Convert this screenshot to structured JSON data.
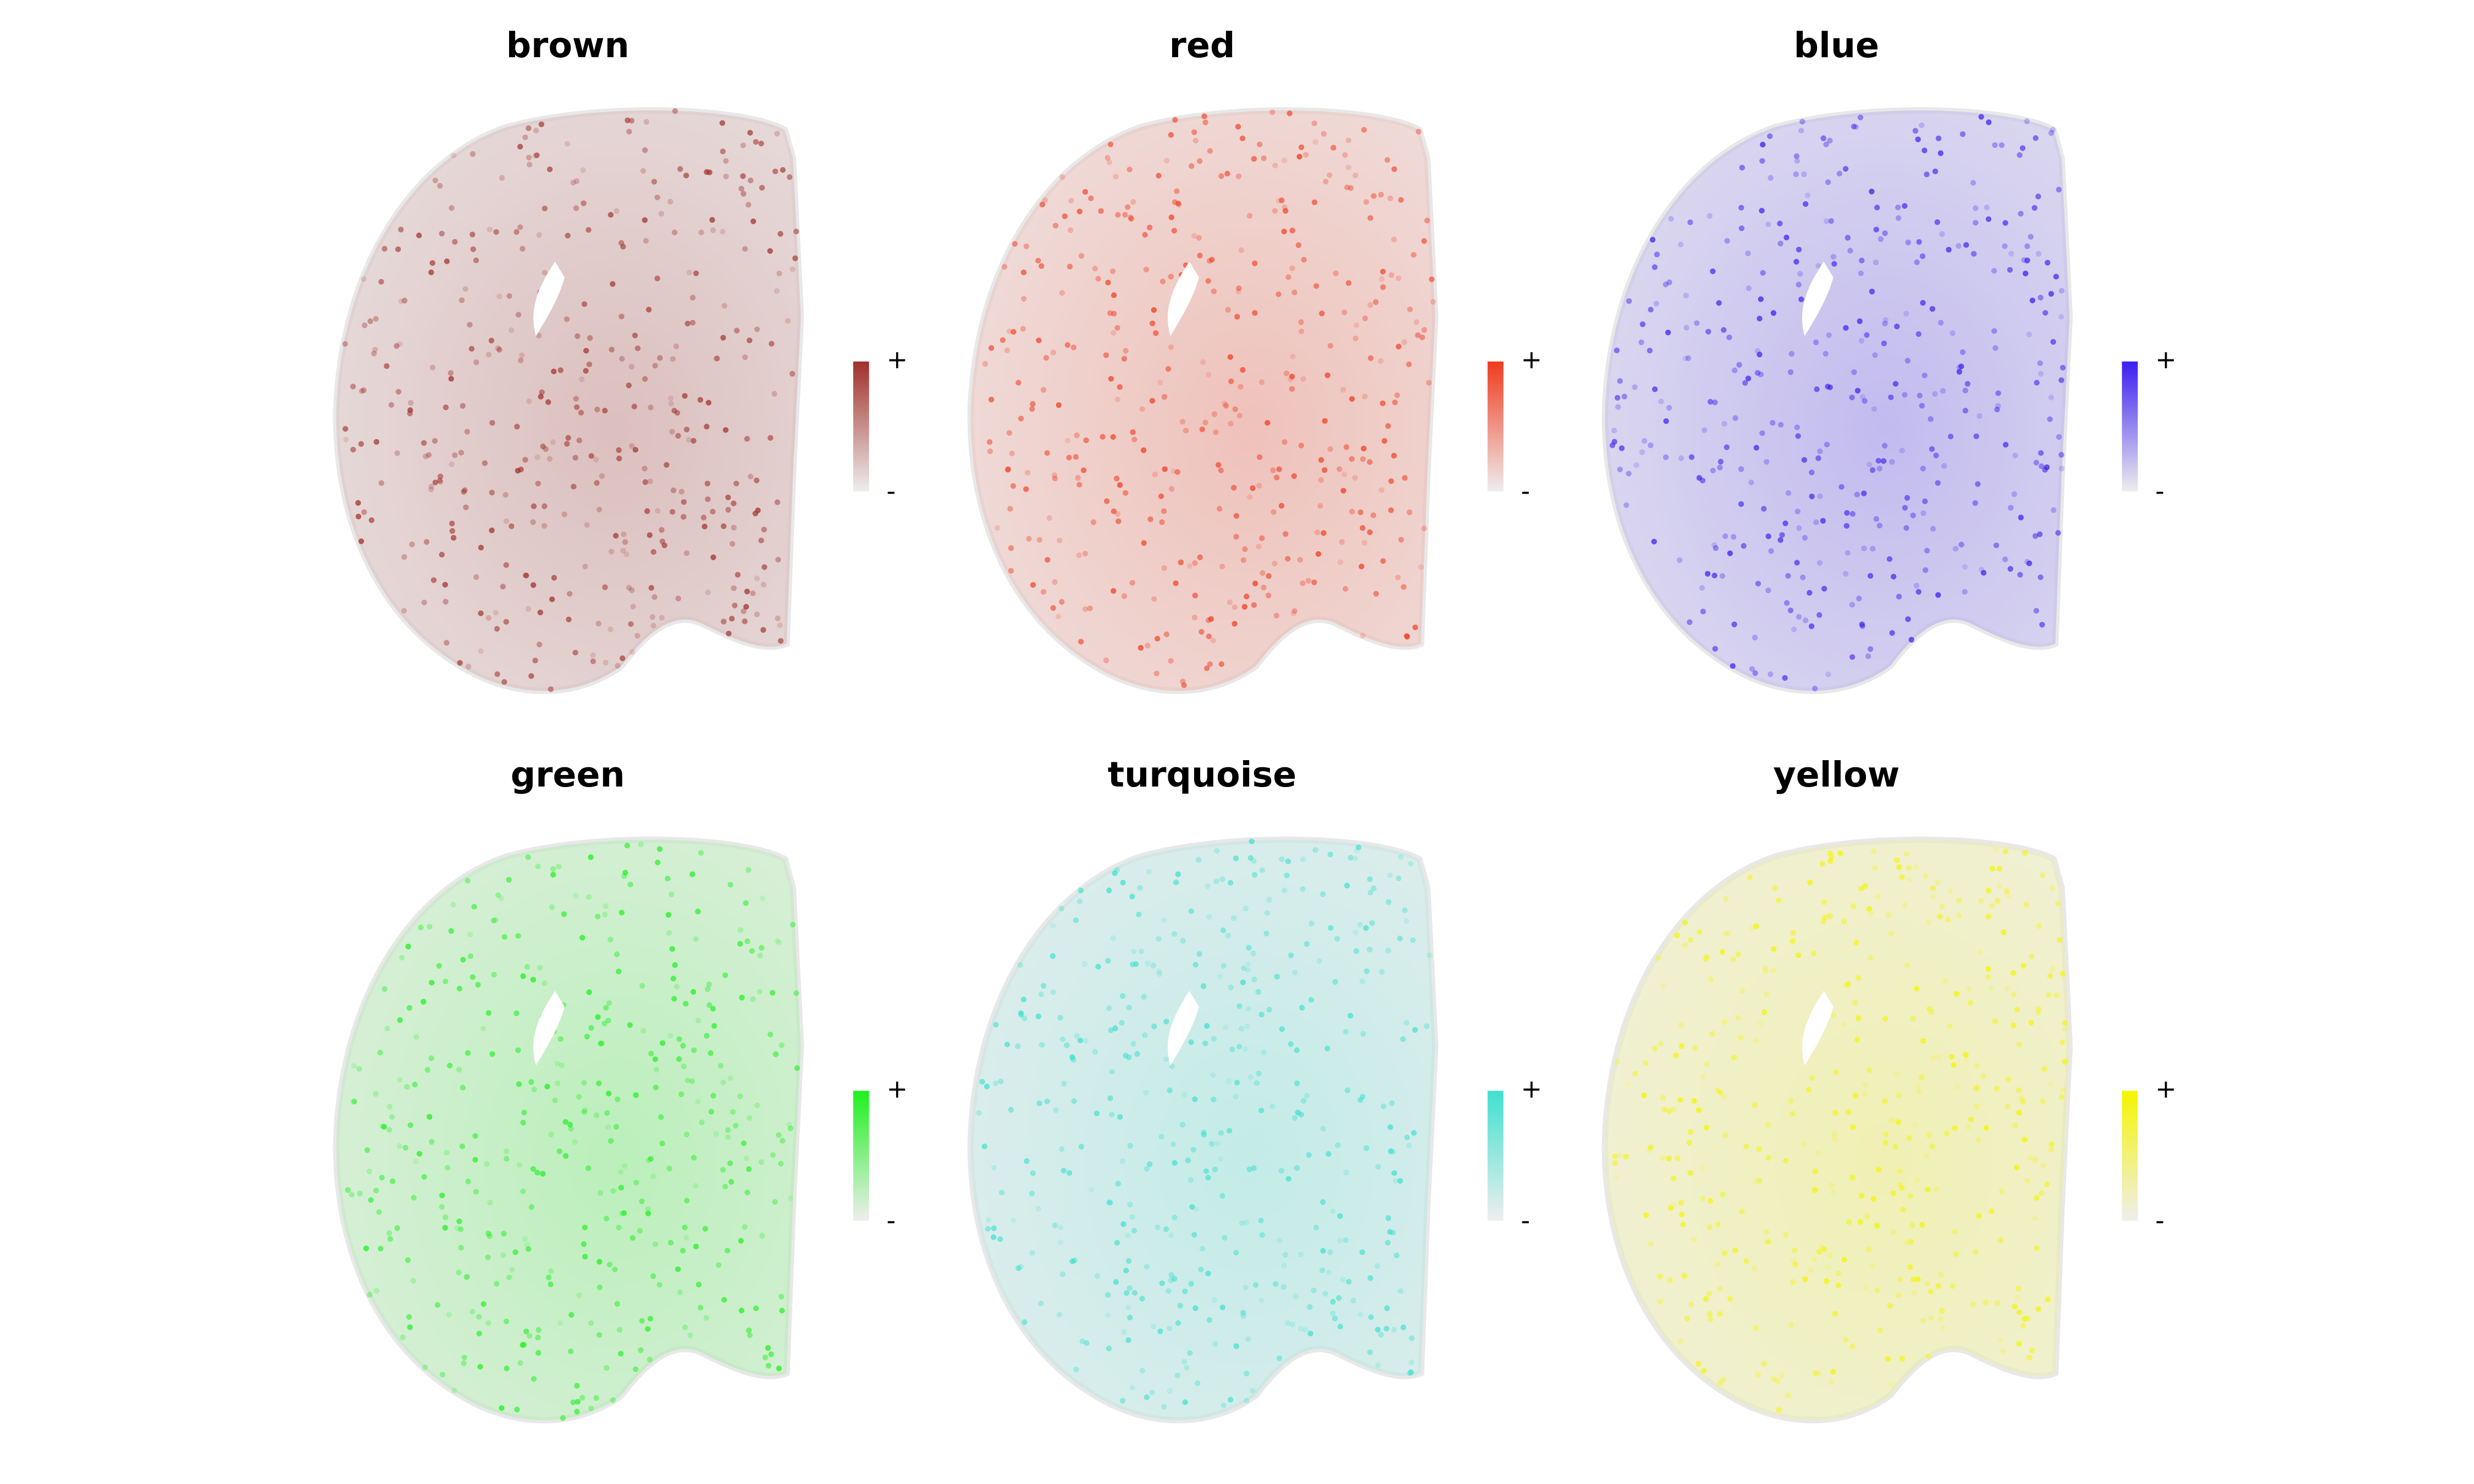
{
  "chart_data": [
    {
      "type": "spatial",
      "title": "brown",
      "color": "#a0302a",
      "legend_high": "+",
      "legend_low": "-"
    },
    {
      "type": "spatial",
      "title": "red",
      "color": "#f03a1e",
      "legend_high": "+",
      "legend_low": "-"
    },
    {
      "type": "spatial",
      "title": "blue",
      "color": "#3b1ef0",
      "legend_high": "+",
      "legend_low": "-"
    },
    {
      "type": "spatial",
      "title": "green",
      "color": "#1ef01e",
      "legend_high": "+",
      "legend_low": "-"
    },
    {
      "type": "spatial",
      "title": "turquoise",
      "color": "#40e0d0",
      "legend_high": "+",
      "legend_low": "-"
    },
    {
      "type": "spatial",
      "title": "yellow",
      "color": "#f5f500",
      "legend_high": "+",
      "legend_low": "-"
    }
  ]
}
